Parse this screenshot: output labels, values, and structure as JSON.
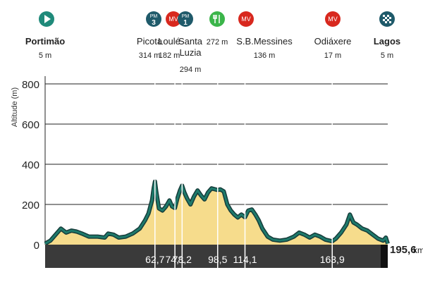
{
  "chart_data": {
    "type": "area",
    "ylabel": "Altitude (m)",
    "ylim": [
      0,
      800
    ],
    "yticks": [
      0,
      200,
      400,
      600,
      800
    ],
    "xlim": [
      0,
      195.6
    ],
    "distance_unit": "km",
    "total_distance_label": "195,6",
    "km_markers": [
      "62,7",
      "74,1",
      "78,2",
      "98,5",
      "114,1",
      "163,9"
    ],
    "colors": {
      "fill": "#f6dc8c",
      "line": "#1e7a6b",
      "line_dark": "#163c3a",
      "base": "#3a3a3a",
      "red": "#d8281e",
      "teal": "#1f8a7a",
      "navy": "#1f5a6a"
    },
    "points": [
      {
        "x": 0,
        "y": 5
      },
      {
        "x": 3,
        "y": 20
      },
      {
        "x": 6,
        "y": 50
      },
      {
        "x": 9,
        "y": 80
      },
      {
        "x": 12,
        "y": 60
      },
      {
        "x": 15,
        "y": 70
      },
      {
        "x": 18,
        "y": 65
      },
      {
        "x": 21,
        "y": 55
      },
      {
        "x": 25,
        "y": 40
      },
      {
        "x": 30,
        "y": 40
      },
      {
        "x": 34,
        "y": 35
      },
      {
        "x": 36,
        "y": 55
      },
      {
        "x": 39,
        "y": 50
      },
      {
        "x": 42,
        "y": 35
      },
      {
        "x": 46,
        "y": 40
      },
      {
        "x": 50,
        "y": 55
      },
      {
        "x": 54,
        "y": 80
      },
      {
        "x": 57,
        "y": 120
      },
      {
        "x": 59,
        "y": 155
      },
      {
        "x": 61,
        "y": 220
      },
      {
        "x": 62,
        "y": 280
      },
      {
        "x": 62.7,
        "y": 314
      },
      {
        "x": 63.5,
        "y": 260
      },
      {
        "x": 65,
        "y": 180
      },
      {
        "x": 67,
        "y": 170
      },
      {
        "x": 69,
        "y": 190
      },
      {
        "x": 71,
        "y": 220
      },
      {
        "x": 72.5,
        "y": 190
      },
      {
        "x": 74.1,
        "y": 182
      },
      {
        "x": 75.5,
        "y": 230
      },
      {
        "x": 77,
        "y": 270
      },
      {
        "x": 78.2,
        "y": 294
      },
      {
        "x": 79.5,
        "y": 260
      },
      {
        "x": 81,
        "y": 230
      },
      {
        "x": 83,
        "y": 200
      },
      {
        "x": 85,
        "y": 240
      },
      {
        "x": 87,
        "y": 270
      },
      {
        "x": 89,
        "y": 245
      },
      {
        "x": 91,
        "y": 225
      },
      {
        "x": 93,
        "y": 260
      },
      {
        "x": 95,
        "y": 280
      },
      {
        "x": 98.5,
        "y": 272
      },
      {
        "x": 100,
        "y": 275
      },
      {
        "x": 102,
        "y": 265
      },
      {
        "x": 104,
        "y": 200
      },
      {
        "x": 106,
        "y": 170
      },
      {
        "x": 108,
        "y": 150
      },
      {
        "x": 110,
        "y": 135
      },
      {
        "x": 112,
        "y": 150
      },
      {
        "x": 114.1,
        "y": 136
      },
      {
        "x": 116,
        "y": 170
      },
      {
        "x": 118,
        "y": 175
      },
      {
        "x": 120,
        "y": 150
      },
      {
        "x": 122,
        "y": 120
      },
      {
        "x": 124,
        "y": 80
      },
      {
        "x": 127,
        "y": 40
      },
      {
        "x": 130,
        "y": 25
      },
      {
        "x": 134,
        "y": 20
      },
      {
        "x": 138,
        "y": 25
      },
      {
        "x": 142,
        "y": 40
      },
      {
        "x": 145,
        "y": 60
      },
      {
        "x": 148,
        "y": 50
      },
      {
        "x": 151,
        "y": 35
      },
      {
        "x": 154,
        "y": 50
      },
      {
        "x": 157,
        "y": 40
      },
      {
        "x": 160,
        "y": 25
      },
      {
        "x": 163.9,
        "y": 17
      },
      {
        "x": 166,
        "y": 30
      },
      {
        "x": 169,
        "y": 60
      },
      {
        "x": 172,
        "y": 100
      },
      {
        "x": 174,
        "y": 150
      },
      {
        "x": 176,
        "y": 110
      },
      {
        "x": 178,
        "y": 100
      },
      {
        "x": 181,
        "y": 80
      },
      {
        "x": 184,
        "y": 70
      },
      {
        "x": 187,
        "y": 50
      },
      {
        "x": 190,
        "y": 30
      },
      {
        "x": 193,
        "y": 20
      },
      {
        "x": 194.5,
        "y": 35
      },
      {
        "x": 195.6,
        "y": 5
      }
    ],
    "places": [
      {
        "name": "Portimão",
        "alt": "5 m",
        "km": 0,
        "icon": "start",
        "icon_text": "",
        "bold": true
      },
      {
        "name": "Picota",
        "alt": "314 m",
        "km": 62.7,
        "icon": "pm",
        "icon_text": "PM",
        "cat": "3",
        "bold": false
      },
      {
        "name": "Loulé",
        "alt": "182 m",
        "km": 74.1,
        "icon": "mv",
        "icon_text": "MV",
        "bold": false
      },
      {
        "name": "Santa Luzia",
        "alt": "294 m",
        "km": 78.2,
        "icon": "pm",
        "icon_text": "PM",
        "cat": "1",
        "bold": false
      },
      {
        "name": "",
        "alt": "272 m",
        "km": 98.5,
        "icon": "feed",
        "icon_text": "",
        "bold": false
      },
      {
        "name": "S.B.Messines",
        "alt": "136 m",
        "km": 114.1,
        "icon": "mv",
        "icon_text": "MV",
        "bold": false
      },
      {
        "name": "Odiáxere",
        "alt": "17 m",
        "km": 163.9,
        "icon": "mv",
        "icon_text": "MV",
        "bold": false
      },
      {
        "name": "Lagos",
        "alt": "5 m",
        "km": 195.6,
        "icon": "finish",
        "icon_text": "",
        "bold": true
      }
    ]
  }
}
